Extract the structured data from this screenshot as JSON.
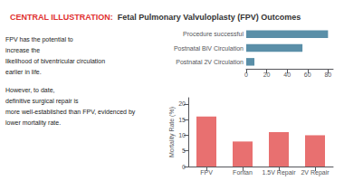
{
  "chart_data": [
    {
      "type": "bar",
      "orientation": "horizontal",
      "title": "CENTRAL ILLUSTRATION:",
      "subtitle": "Fetal Pulmonary Valvuloplasty (FPV) Outcomes",
      "annotations": [
        "FPV has the potential to",
        "increase the",
        "likelihood of biventricular circulation",
        "earlier in life.",
        "However, to date,",
        "definitive surgical repair is",
        "more well-established than FPV, evidenced by",
        "lower mortality rate."
      ],
      "categories": [
        "Procedure successful",
        "Postnatal BiV Circulation",
        "Postnatal 2V Circulation"
      ],
      "values": [
        80,
        55,
        8
      ],
      "color": "#5a8fa8",
      "xlim": [
        0,
        85
      ],
      "xticks": [
        0,
        20,
        40,
        60,
        80
      ],
      "grid": false
    },
    {
      "type": "bar",
      "categories": [
        "FPV",
        "Fontan",
        "1.5V Repair",
        "2V Repair"
      ],
      "values": [
        16,
        8,
        11,
        10
      ],
      "color": "#e87070",
      "ylim": [
        0,
        22
      ],
      "yticks": [
        0,
        5,
        10,
        15,
        20
      ],
      "ylabel": "Mortality Rate (%)",
      "grid": false
    }
  ]
}
